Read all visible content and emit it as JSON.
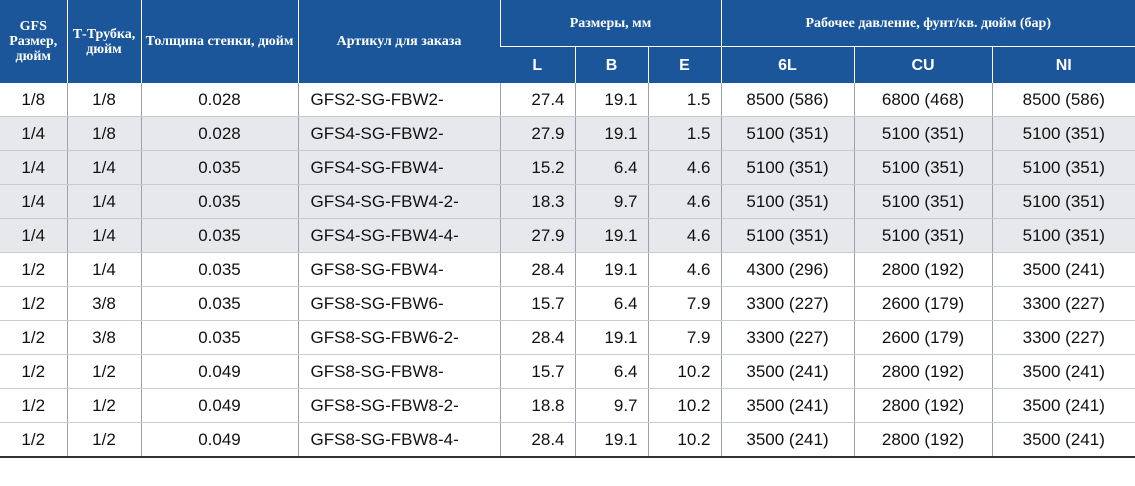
{
  "header": {
    "gfs_size": "GFS Размер, дюйм",
    "tee_tube": "Т-Трубка, дюйм",
    "wall": "Толщина стенки, дюйм",
    "order_no": "Артикул для заказа",
    "dims_group": "Размеры, мм",
    "pressure_group": "Рабочее давление, фунт/кв. дюйм (бар)",
    "dim_L": "L",
    "dim_B": "B",
    "dim_E": "E",
    "p_6L": "6L",
    "p_CU": "CU",
    "p_NI": "NI"
  },
  "rows": [
    {
      "size": "1/8",
      "tee": "1/8",
      "wall": "0.028",
      "part": "GFS2-SG-FBW2-",
      "L": "27.4",
      "B": "19.1",
      "E": "1.5",
      "p6l": "8500 (586)",
      "pcu": "6800 (468)",
      "pni": "8500 (586)"
    },
    {
      "size": "1/4",
      "tee": "1/8",
      "wall": "0.028",
      "part": "GFS4-SG-FBW2-",
      "L": "27.9",
      "B": "19.1",
      "E": "1.5",
      "p6l": "5100 (351)",
      "pcu": "5100 (351)",
      "pni": "5100 (351)"
    },
    {
      "size": "1/4",
      "tee": "1/4",
      "wall": "0.035",
      "part": "GFS4-SG-FBW4-",
      "L": "15.2",
      "B": "6.4",
      "E": "4.6",
      "p6l": "5100 (351)",
      "pcu": "5100 (351)",
      "pni": "5100 (351)"
    },
    {
      "size": "1/4",
      "tee": "1/4",
      "wall": "0.035",
      "part": "GFS4-SG-FBW4-2-",
      "L": "18.3",
      "B": "9.7",
      "E": "4.6",
      "p6l": "5100 (351)",
      "pcu": "5100 (351)",
      "pni": "5100 (351)"
    },
    {
      "size": "1/4",
      "tee": "1/4",
      "wall": "0.035",
      "part": "GFS4-SG-FBW4-4-",
      "L": "27.9",
      "B": "19.1",
      "E": "4.6",
      "p6l": "5100 (351)",
      "pcu": "5100 (351)",
      "pni": "5100 (351)"
    },
    {
      "size": "1/2",
      "tee": "1/4",
      "wall": "0.035",
      "part": "GFS8-SG-FBW4-",
      "L": "28.4",
      "B": "19.1",
      "E": "4.6",
      "p6l": "4300 (296)",
      "pcu": "2800 (192)",
      "pni": "3500 (241)"
    },
    {
      "size": "1/2",
      "tee": "3/8",
      "wall": "0.035",
      "part": "GFS8-SG-FBW6-",
      "L": "15.7",
      "B": "6.4",
      "E": "7.9",
      "p6l": "3300 (227)",
      "pcu": "2600 (179)",
      "pni": "3300 (227)"
    },
    {
      "size": "1/2",
      "tee": "3/8",
      "wall": "0.035",
      "part": "GFS8-SG-FBW6-2-",
      "L": "28.4",
      "B": "19.1",
      "E": "7.9",
      "p6l": "3300 (227)",
      "pcu": "2600 (179)",
      "pni": "3300 (227)"
    },
    {
      "size": "1/2",
      "tee": "1/2",
      "wall": "0.049",
      "part": "GFS8-SG-FBW8-",
      "L": "15.7",
      "B": "6.4",
      "E": "10.2",
      "p6l": "3500 (241)",
      "pcu": "2800 (192)",
      "pni": "3500 (241)"
    },
    {
      "size": "1/2",
      "tee": "1/2",
      "wall": "0.049",
      "part": "GFS8-SG-FBW8-2-",
      "L": "18.8",
      "B": "9.7",
      "E": "10.2",
      "p6l": "3500 (241)",
      "pcu": "2800 (192)",
      "pni": "3500 (241)"
    },
    {
      "size": "1/2",
      "tee": "1/2",
      "wall": "0.049",
      "part": "GFS8-SG-FBW8-4-",
      "L": "28.4",
      "B": "19.1",
      "E": "10.2",
      "p6l": "3500 (241)",
      "pcu": "2800 (192)",
      "pni": "3500 (241)"
    }
  ],
  "shaded_rows": [
    1,
    2,
    3,
    4
  ],
  "colors": {
    "header_bg": "#1a5699",
    "shade_bg": "#e6e8eb"
  }
}
